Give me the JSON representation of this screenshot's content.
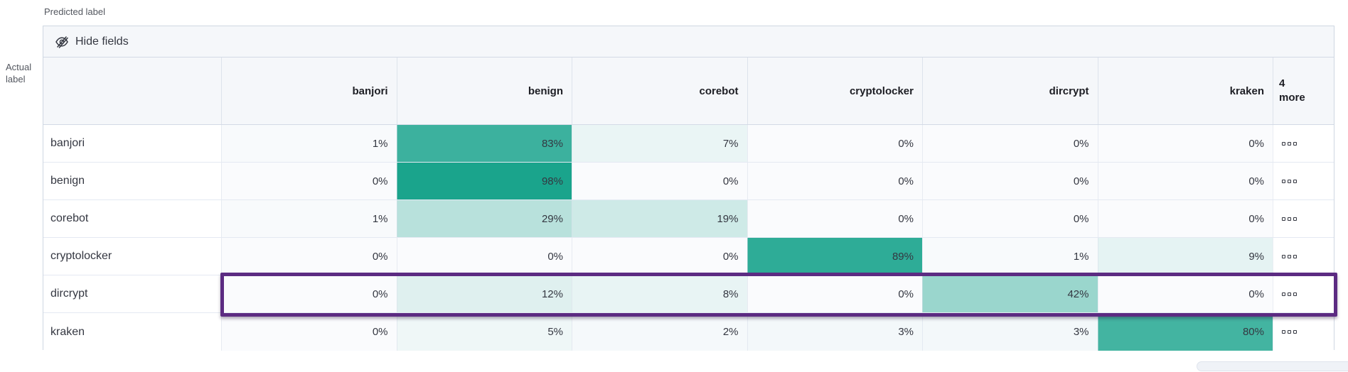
{
  "axis_labels": {
    "predicted": "Predicted label",
    "actual_line1": "Actual",
    "actual_line2": "label"
  },
  "toolbar": {
    "hide_fields_label": "Hide fields"
  },
  "grid": {
    "columns": [
      "banjori",
      "benign",
      "corebot",
      "cryptolocker",
      "dircrypt",
      "kraken"
    ],
    "more_column": {
      "line1": "4",
      "line2": "more"
    },
    "rows": [
      {
        "label": "banjori",
        "values": [
          1,
          83,
          7,
          0,
          0,
          0
        ],
        "highlighted": false
      },
      {
        "label": "benign",
        "values": [
          0,
          98,
          0,
          0,
          0,
          0
        ],
        "highlighted": false
      },
      {
        "label": "corebot",
        "values": [
          1,
          29,
          19,
          0,
          0,
          0
        ],
        "highlighted": false
      },
      {
        "label": "cryptolocker",
        "values": [
          0,
          0,
          0,
          89,
          1,
          9
        ],
        "highlighted": false
      },
      {
        "label": "dircrypt",
        "values": [
          0,
          12,
          8,
          0,
          42,
          0
        ],
        "highlighted": true
      },
      {
        "label": "kraken",
        "values": [
          0,
          5,
          2,
          3,
          3,
          80
        ],
        "highlighted": false
      }
    ],
    "value_suffix": "%",
    "row_actions_icon": "boxes-horizontal-icon",
    "hide_fields_icon": "eye-closed-icon"
  },
  "colors": {
    "heat_base": "#15A28A",
    "cell_zero_bg": "#FAFBFD",
    "highlight_border": "#5C2B82",
    "header_bg": "#F5F7FA",
    "cell_text": "#343741"
  },
  "chart_data": {
    "type": "heatmap",
    "title": "",
    "xlabel": "Predicted label",
    "ylabel": "Actual label",
    "x_categories": [
      "banjori",
      "benign",
      "corebot",
      "cryptolocker",
      "dircrypt",
      "kraken"
    ],
    "y_categories": [
      "banjori",
      "benign",
      "corebot",
      "cryptolocker",
      "dircrypt",
      "kraken"
    ],
    "values_percent": [
      [
        1,
        83,
        7,
        0,
        0,
        0
      ],
      [
        0,
        98,
        0,
        0,
        0,
        0
      ],
      [
        1,
        29,
        19,
        0,
        0,
        0
      ],
      [
        0,
        0,
        0,
        89,
        1,
        9
      ],
      [
        0,
        12,
        8,
        0,
        42,
        0
      ],
      [
        0,
        5,
        2,
        3,
        3,
        80
      ]
    ],
    "hidden_columns_note": "4 more",
    "value_range": [
      0,
      100
    ],
    "colormap": "white-to-teal",
    "highlighted_row": "dircrypt",
    "legend": "off"
  }
}
